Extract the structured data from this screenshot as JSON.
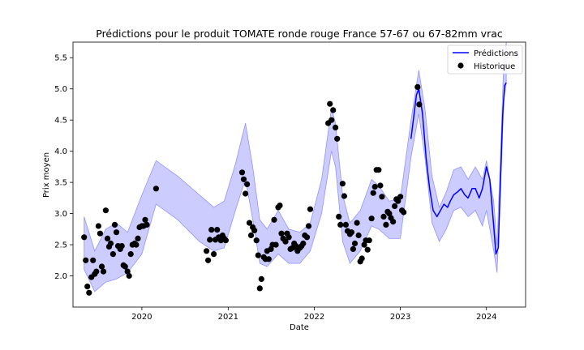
{
  "chart_data": {
    "type": "line",
    "title": "Prédictions pour le produit TOMATE ronde rouge France 57-67 ou 67-82mm vrac",
    "xlabel": "Date",
    "ylabel": "Prix moyen",
    "xlim": [
      "2019-03-15",
      "2024-06-15"
    ],
    "ylim": [
      1.5,
      5.75
    ],
    "x_ticks": [
      "2020-01-01",
      "2021-01-01",
      "2022-01-01",
      "2023-01-01",
      "2024-01-01"
    ],
    "x_tick_labels": [
      "2020",
      "2021",
      "2022",
      "2023",
      "2024"
    ],
    "y_ticks": [
      2.0,
      2.5,
      3.0,
      3.5,
      4.0,
      4.5,
      5.0,
      5.5
    ],
    "y_tick_labels": [
      "2.0",
      "2.5",
      "3.0",
      "3.5",
      "4.0",
      "4.5",
      "5.0",
      "5.5"
    ],
    "grid": false,
    "legend": {
      "placement": "top-right",
      "entries": [
        {
          "label": "Prédictions",
          "kind": "line",
          "color": "#0000ff"
        },
        {
          "label": "Historique",
          "kind": "marker",
          "color": "#000000"
        }
      ]
    },
    "band": {
      "color": "#0000ff",
      "opacity": 0.2,
      "upper": [
        [
          "2019-05-01",
          2.95
        ],
        [
          "2019-06-15",
          2.4
        ],
        [
          "2019-08-01",
          2.75
        ],
        [
          "2019-09-15",
          2.85
        ],
        [
          "2019-11-01",
          2.7
        ],
        [
          "2020-01-01",
          3.3
        ],
        [
          "2020-03-01",
          3.85
        ],
        [
          "2020-06-01",
          3.6
        ],
        [
          "2020-09-01",
          3.3
        ],
        [
          "2020-11-01",
          3.1
        ],
        [
          "2020-12-15",
          3.2
        ],
        [
          "2021-02-01",
          3.8
        ],
        [
          "2021-03-15",
          4.45
        ],
        [
          "2021-04-15",
          3.75
        ],
        [
          "2021-05-15",
          2.9
        ],
        [
          "2021-06-15",
          2.75
        ],
        [
          "2021-08-01",
          3.05
        ],
        [
          "2021-09-15",
          2.75
        ],
        [
          "2021-11-01",
          2.7
        ],
        [
          "2021-12-15",
          2.85
        ],
        [
          "2022-02-01",
          3.55
        ],
        [
          "2022-03-15",
          4.7
        ],
        [
          "2022-04-01",
          4.45
        ],
        [
          "2022-05-01",
          3.3
        ],
        [
          "2022-06-01",
          2.85
        ],
        [
          "2022-07-15",
          3.05
        ],
        [
          "2022-09-01",
          3.55
        ],
        [
          "2022-10-01",
          3.45
        ],
        [
          "2022-11-15",
          3.2
        ],
        [
          "2023-01-01",
          3.25
        ],
        [
          "2023-02-15",
          4.5
        ],
        [
          "2023-03-20",
          5.3
        ],
        [
          "2023-04-15",
          4.7
        ],
        [
          "2023-05-15",
          3.6
        ],
        [
          "2023-06-15",
          3.1
        ],
        [
          "2023-07-15",
          3.35
        ],
        [
          "2023-08-15",
          3.7
        ],
        [
          "2023-09-15",
          3.75
        ],
        [
          "2023-10-15",
          3.55
        ],
        [
          "2023-11-15",
          3.75
        ],
        [
          "2023-12-15",
          3.55
        ],
        [
          "2024-01-01",
          3.85
        ],
        [
          "2024-02-01",
          3.2
        ],
        [
          "2024-02-15",
          2.5
        ],
        [
          "2024-03-01",
          4.0
        ],
        [
          "2024-03-15",
          5.5
        ],
        [
          "2024-03-25",
          5.75
        ]
      ],
      "lower": [
        [
          "2019-05-01",
          2.1
        ],
        [
          "2019-06-15",
          1.75
        ],
        [
          "2019-08-01",
          1.9
        ],
        [
          "2019-09-15",
          1.95
        ],
        [
          "2019-11-01",
          2.05
        ],
        [
          "2020-01-01",
          2.35
        ],
        [
          "2020-03-01",
          3.15
        ],
        [
          "2020-06-01",
          2.9
        ],
        [
          "2020-09-01",
          2.55
        ],
        [
          "2020-11-01",
          2.4
        ],
        [
          "2020-12-15",
          2.45
        ],
        [
          "2021-02-01",
          3.05
        ],
        [
          "2021-03-15",
          3.55
        ],
        [
          "2021-04-15",
          2.9
        ],
        [
          "2021-05-15",
          2.2
        ],
        [
          "2021-06-15",
          2.15
        ],
        [
          "2021-08-01",
          2.35
        ],
        [
          "2021-09-15",
          2.2
        ],
        [
          "2021-11-01",
          2.2
        ],
        [
          "2021-12-15",
          2.4
        ],
        [
          "2022-02-01",
          3.0
        ],
        [
          "2022-03-15",
          4.0
        ],
        [
          "2022-04-01",
          3.75
        ],
        [
          "2022-05-01",
          2.55
        ],
        [
          "2022-06-01",
          2.2
        ],
        [
          "2022-07-15",
          2.4
        ],
        [
          "2022-09-01",
          2.8
        ],
        [
          "2022-10-01",
          2.75
        ],
        [
          "2022-11-15",
          2.6
        ],
        [
          "2023-01-01",
          2.6
        ],
        [
          "2023-02-15",
          3.9
        ],
        [
          "2023-03-20",
          4.6
        ],
        [
          "2023-04-15",
          3.9
        ],
        [
          "2023-05-15",
          2.85
        ],
        [
          "2023-06-15",
          2.55
        ],
        [
          "2023-07-15",
          2.75
        ],
        [
          "2023-08-15",
          3.05
        ],
        [
          "2023-09-15",
          3.1
        ],
        [
          "2023-10-15",
          2.95
        ],
        [
          "2023-11-15",
          3.05
        ],
        [
          "2023-12-15",
          2.8
        ],
        [
          "2024-01-01",
          3.05
        ],
        [
          "2024-02-01",
          2.4
        ],
        [
          "2024-02-15",
          2.05
        ],
        [
          "2024-03-01",
          3.4
        ],
        [
          "2024-03-15",
          4.8
        ],
        [
          "2024-03-25",
          5.1
        ]
      ]
    },
    "series": [
      {
        "name": "Prédictions",
        "color": "#0000ff",
        "points": [
          [
            "2023-02-15",
            4.2
          ],
          [
            "2023-03-10",
            4.9
          ],
          [
            "2023-03-20",
            5.0
          ],
          [
            "2023-04-05",
            4.6
          ],
          [
            "2023-04-20",
            3.9
          ],
          [
            "2023-05-05",
            3.4
          ],
          [
            "2023-05-20",
            3.05
          ],
          [
            "2023-06-05",
            2.95
          ],
          [
            "2023-06-20",
            3.05
          ],
          [
            "2023-07-05",
            3.15
          ],
          [
            "2023-07-20",
            3.1
          ],
          [
            "2023-08-01",
            3.2
          ],
          [
            "2023-08-15",
            3.3
          ],
          [
            "2023-09-01",
            3.35
          ],
          [
            "2023-09-15",
            3.4
          ],
          [
            "2023-10-01",
            3.3
          ],
          [
            "2023-10-15",
            3.25
          ],
          [
            "2023-11-01",
            3.4
          ],
          [
            "2023-11-15",
            3.4
          ],
          [
            "2023-12-01",
            3.25
          ],
          [
            "2023-12-15",
            3.4
          ],
          [
            "2024-01-01",
            3.75
          ],
          [
            "2024-01-15",
            3.55
          ],
          [
            "2024-02-01",
            2.8
          ],
          [
            "2024-02-10",
            2.35
          ],
          [
            "2024-02-20",
            2.45
          ],
          [
            "2024-03-01",
            3.6
          ],
          [
            "2024-03-10",
            4.6
          ],
          [
            "2024-03-18",
            5.05
          ],
          [
            "2024-03-25",
            5.1
          ]
        ]
      },
      {
        "name": "Historique",
        "color": "#000000",
        "points": [
          [
            "2019-05-01",
            2.62
          ],
          [
            "2019-05-08",
            2.25
          ],
          [
            "2019-05-15",
            1.83
          ],
          [
            "2019-05-22",
            1.73
          ],
          [
            "2019-06-01",
            1.98
          ],
          [
            "2019-06-08",
            2.25
          ],
          [
            "2019-06-15",
            2.03
          ],
          [
            "2019-06-22",
            2.07
          ],
          [
            "2019-07-01",
            2.8
          ],
          [
            "2019-07-08",
            2.68
          ],
          [
            "2019-07-15",
            2.15
          ],
          [
            "2019-07-22",
            2.07
          ],
          [
            "2019-08-01",
            3.05
          ],
          [
            "2019-08-08",
            2.6
          ],
          [
            "2019-08-15",
            2.47
          ],
          [
            "2019-08-22",
            2.52
          ],
          [
            "2019-09-01",
            2.35
          ],
          [
            "2019-09-08",
            2.82
          ],
          [
            "2019-09-15",
            2.7
          ],
          [
            "2019-09-22",
            2.48
          ],
          [
            "2019-10-01",
            2.43
          ],
          [
            "2019-10-08",
            2.48
          ],
          [
            "2019-10-15",
            2.17
          ],
          [
            "2019-10-22",
            2.15
          ],
          [
            "2019-11-01",
            2.07
          ],
          [
            "2019-11-08",
            2.0
          ],
          [
            "2019-11-15",
            2.35
          ],
          [
            "2019-11-22",
            2.5
          ],
          [
            "2019-12-01",
            2.52
          ],
          [
            "2019-12-08",
            2.5
          ],
          [
            "2019-12-15",
            2.6
          ],
          [
            "2019-12-22",
            2.78
          ],
          [
            "2020-01-01",
            2.8
          ],
          [
            "2020-01-08",
            2.8
          ],
          [
            "2020-01-15",
            2.9
          ],
          [
            "2020-01-22",
            2.82
          ],
          [
            "2020-03-01",
            3.4
          ],
          [
            "2020-10-01",
            2.4
          ],
          [
            "2020-10-08",
            2.25
          ],
          [
            "2020-10-15",
            2.58
          ],
          [
            "2020-10-22",
            2.74
          ],
          [
            "2020-11-01",
            2.35
          ],
          [
            "2020-11-08",
            2.58
          ],
          [
            "2020-11-15",
            2.74
          ],
          [
            "2020-11-22",
            2.62
          ],
          [
            "2020-12-01",
            2.57
          ],
          [
            "2020-12-08",
            2.65
          ],
          [
            "2020-12-15",
            2.6
          ],
          [
            "2020-12-22",
            2.57
          ],
          [
            "2021-03-01",
            3.66
          ],
          [
            "2021-03-08",
            3.55
          ],
          [
            "2021-03-15",
            3.32
          ],
          [
            "2021-03-22",
            3.47
          ],
          [
            "2021-04-01",
            2.85
          ],
          [
            "2021-04-08",
            2.65
          ],
          [
            "2021-04-15",
            2.78
          ],
          [
            "2021-04-22",
            2.73
          ],
          [
            "2021-05-01",
            2.57
          ],
          [
            "2021-05-08",
            2.33
          ],
          [
            "2021-05-15",
            1.8
          ],
          [
            "2021-05-22",
            1.95
          ],
          [
            "2021-06-01",
            2.3
          ],
          [
            "2021-06-08",
            2.27
          ],
          [
            "2021-06-15",
            2.4
          ],
          [
            "2021-06-22",
            2.27
          ],
          [
            "2021-07-01",
            2.43
          ],
          [
            "2021-07-08",
            2.5
          ],
          [
            "2021-07-15",
            2.9
          ],
          [
            "2021-07-22",
            2.5
          ],
          [
            "2021-08-01",
            3.1
          ],
          [
            "2021-08-08",
            3.13
          ],
          [
            "2021-08-15",
            2.68
          ],
          [
            "2021-08-22",
            2.6
          ],
          [
            "2021-09-01",
            2.55
          ],
          [
            "2021-09-08",
            2.68
          ],
          [
            "2021-09-15",
            2.62
          ],
          [
            "2021-09-22",
            2.43
          ],
          [
            "2021-10-01",
            2.45
          ],
          [
            "2021-10-08",
            2.52
          ],
          [
            "2021-10-15",
            2.48
          ],
          [
            "2021-10-22",
            2.4
          ],
          [
            "2021-11-01",
            2.45
          ],
          [
            "2021-11-08",
            2.48
          ],
          [
            "2021-11-15",
            2.52
          ],
          [
            "2021-11-22",
            2.65
          ],
          [
            "2021-12-01",
            2.62
          ],
          [
            "2021-12-08",
            2.8
          ],
          [
            "2021-12-15",
            3.07
          ],
          [
            "2022-03-01",
            4.45
          ],
          [
            "2022-03-08",
            4.76
          ],
          [
            "2022-03-15",
            4.5
          ],
          [
            "2022-03-22",
            4.66
          ],
          [
            "2022-04-01",
            4.38
          ],
          [
            "2022-04-08",
            4.2
          ],
          [
            "2022-04-15",
            2.95
          ],
          [
            "2022-04-22",
            2.82
          ],
          [
            "2022-05-01",
            3.48
          ],
          [
            "2022-05-08",
            3.28
          ],
          [
            "2022-05-15",
            2.82
          ],
          [
            "2022-05-22",
            2.72
          ],
          [
            "2022-06-01",
            2.67
          ],
          [
            "2022-06-08",
            2.7
          ],
          [
            "2022-06-15",
            2.43
          ],
          [
            "2022-06-22",
            2.52
          ],
          [
            "2022-07-01",
            2.85
          ],
          [
            "2022-07-08",
            2.65
          ],
          [
            "2022-07-15",
            2.23
          ],
          [
            "2022-07-22",
            2.28
          ],
          [
            "2022-08-01",
            2.5
          ],
          [
            "2022-08-08",
            2.57
          ],
          [
            "2022-08-15",
            2.42
          ],
          [
            "2022-08-22",
            2.57
          ],
          [
            "2022-09-01",
            2.92
          ],
          [
            "2022-09-08",
            3.33
          ],
          [
            "2022-09-15",
            3.43
          ],
          [
            "2022-09-22",
            3.7
          ],
          [
            "2022-10-01",
            3.7
          ],
          [
            "2022-10-08",
            3.45
          ],
          [
            "2022-10-15",
            3.27
          ],
          [
            "2022-10-22",
            2.95
          ],
          [
            "2022-11-01",
            2.82
          ],
          [
            "2022-11-08",
            3.03
          ],
          [
            "2022-11-15",
            3.0
          ],
          [
            "2022-11-22",
            2.93
          ],
          [
            "2022-12-01",
            2.87
          ],
          [
            "2022-12-08",
            3.12
          ],
          [
            "2022-12-15",
            3.23
          ],
          [
            "2022-12-22",
            3.2
          ],
          [
            "2023-01-01",
            3.27
          ],
          [
            "2023-01-08",
            3.05
          ],
          [
            "2023-01-15",
            3.02
          ],
          [
            "2023-03-15",
            5.03
          ],
          [
            "2023-03-22",
            4.75
          ]
        ]
      }
    ]
  }
}
